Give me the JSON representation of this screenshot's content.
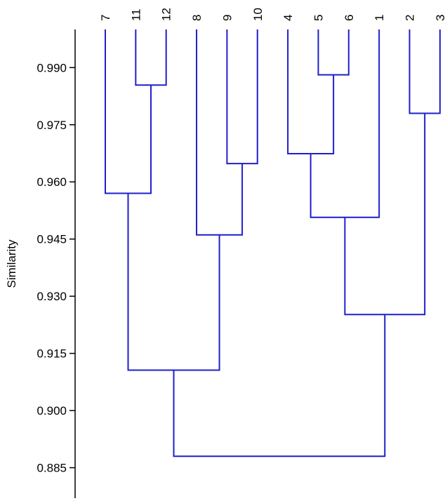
{
  "chart_data": {
    "type": "dendrogram",
    "y_label": "Similarity",
    "categories": [
      "7",
      "11",
      "12",
      "8",
      "9",
      "10",
      "4",
      "5",
      "6",
      "1",
      "2",
      "3"
    ],
    "merges": [
      {
        "children": [
          1,
          2
        ],
        "height": 0.9854
      },
      {
        "children": [
          0,
          12
        ],
        "height": 0.957
      },
      {
        "children": [
          4,
          5
        ],
        "height": 0.9648
      },
      {
        "children": [
          3,
          14
        ],
        "height": 0.9461
      },
      {
        "children": [
          7,
          8
        ],
        "height": 0.9881
      },
      {
        "children": [
          6,
          16
        ],
        "height": 0.9674
      },
      {
        "children": [
          17,
          9
        ],
        "height": 0.9507
      },
      {
        "children": [
          10,
          11
        ],
        "height": 0.978
      },
      {
        "children": [
          18,
          19
        ],
        "height": 0.9252
      },
      {
        "children": [
          13,
          15
        ],
        "height": 0.9106
      },
      {
        "children": [
          21,
          20
        ],
        "height": 0.888
      }
    ],
    "color": "#1f1fcc",
    "ylim": [
      0.877,
      1.0
    ],
    "yticks": [
      {
        "value": 0.99,
        "label": "0.990"
      },
      {
        "value": 0.975,
        "label": "0.975"
      },
      {
        "value": 0.96,
        "label": "0.960"
      },
      {
        "value": 0.945,
        "label": "0.945"
      },
      {
        "value": 0.93,
        "label": "0.930"
      },
      {
        "value": 0.915,
        "label": "0.915"
      },
      {
        "value": 0.9,
        "label": "0.900"
      },
      {
        "value": 0.885,
        "label": "0.885"
      }
    ]
  }
}
